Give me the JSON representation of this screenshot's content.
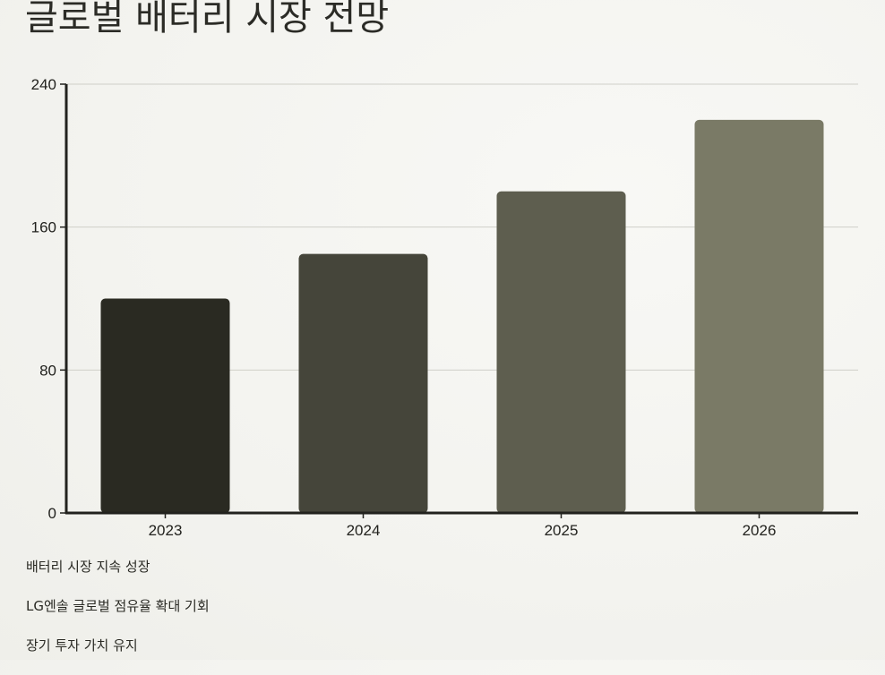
{
  "title": "글로벌 배터리 시장 전망",
  "chart_data": {
    "type": "bar",
    "title": "글로벌 배터리 시장 전망",
    "categories": [
      "2023",
      "2024",
      "2025",
      "2026"
    ],
    "values": [
      120,
      145,
      180,
      220
    ],
    "ylim": [
      0,
      240
    ],
    "yticks": [
      "0",
      "80",
      "160",
      "240"
    ],
    "xlabel": "",
    "ylabel": "",
    "grid": true,
    "legend": "none",
    "bar_colors": [
      "#2a2a22",
      "#45453a",
      "#5e5e4f",
      "#7a7a66"
    ],
    "grid_color": "#cfcfc8",
    "axis_color": "#22221e"
  },
  "notes": [
    "배터리 시장 지속 성장",
    "LG엔솔 글로벌 점유율 확대 기회",
    "장기 투자 가치 유지"
  ]
}
